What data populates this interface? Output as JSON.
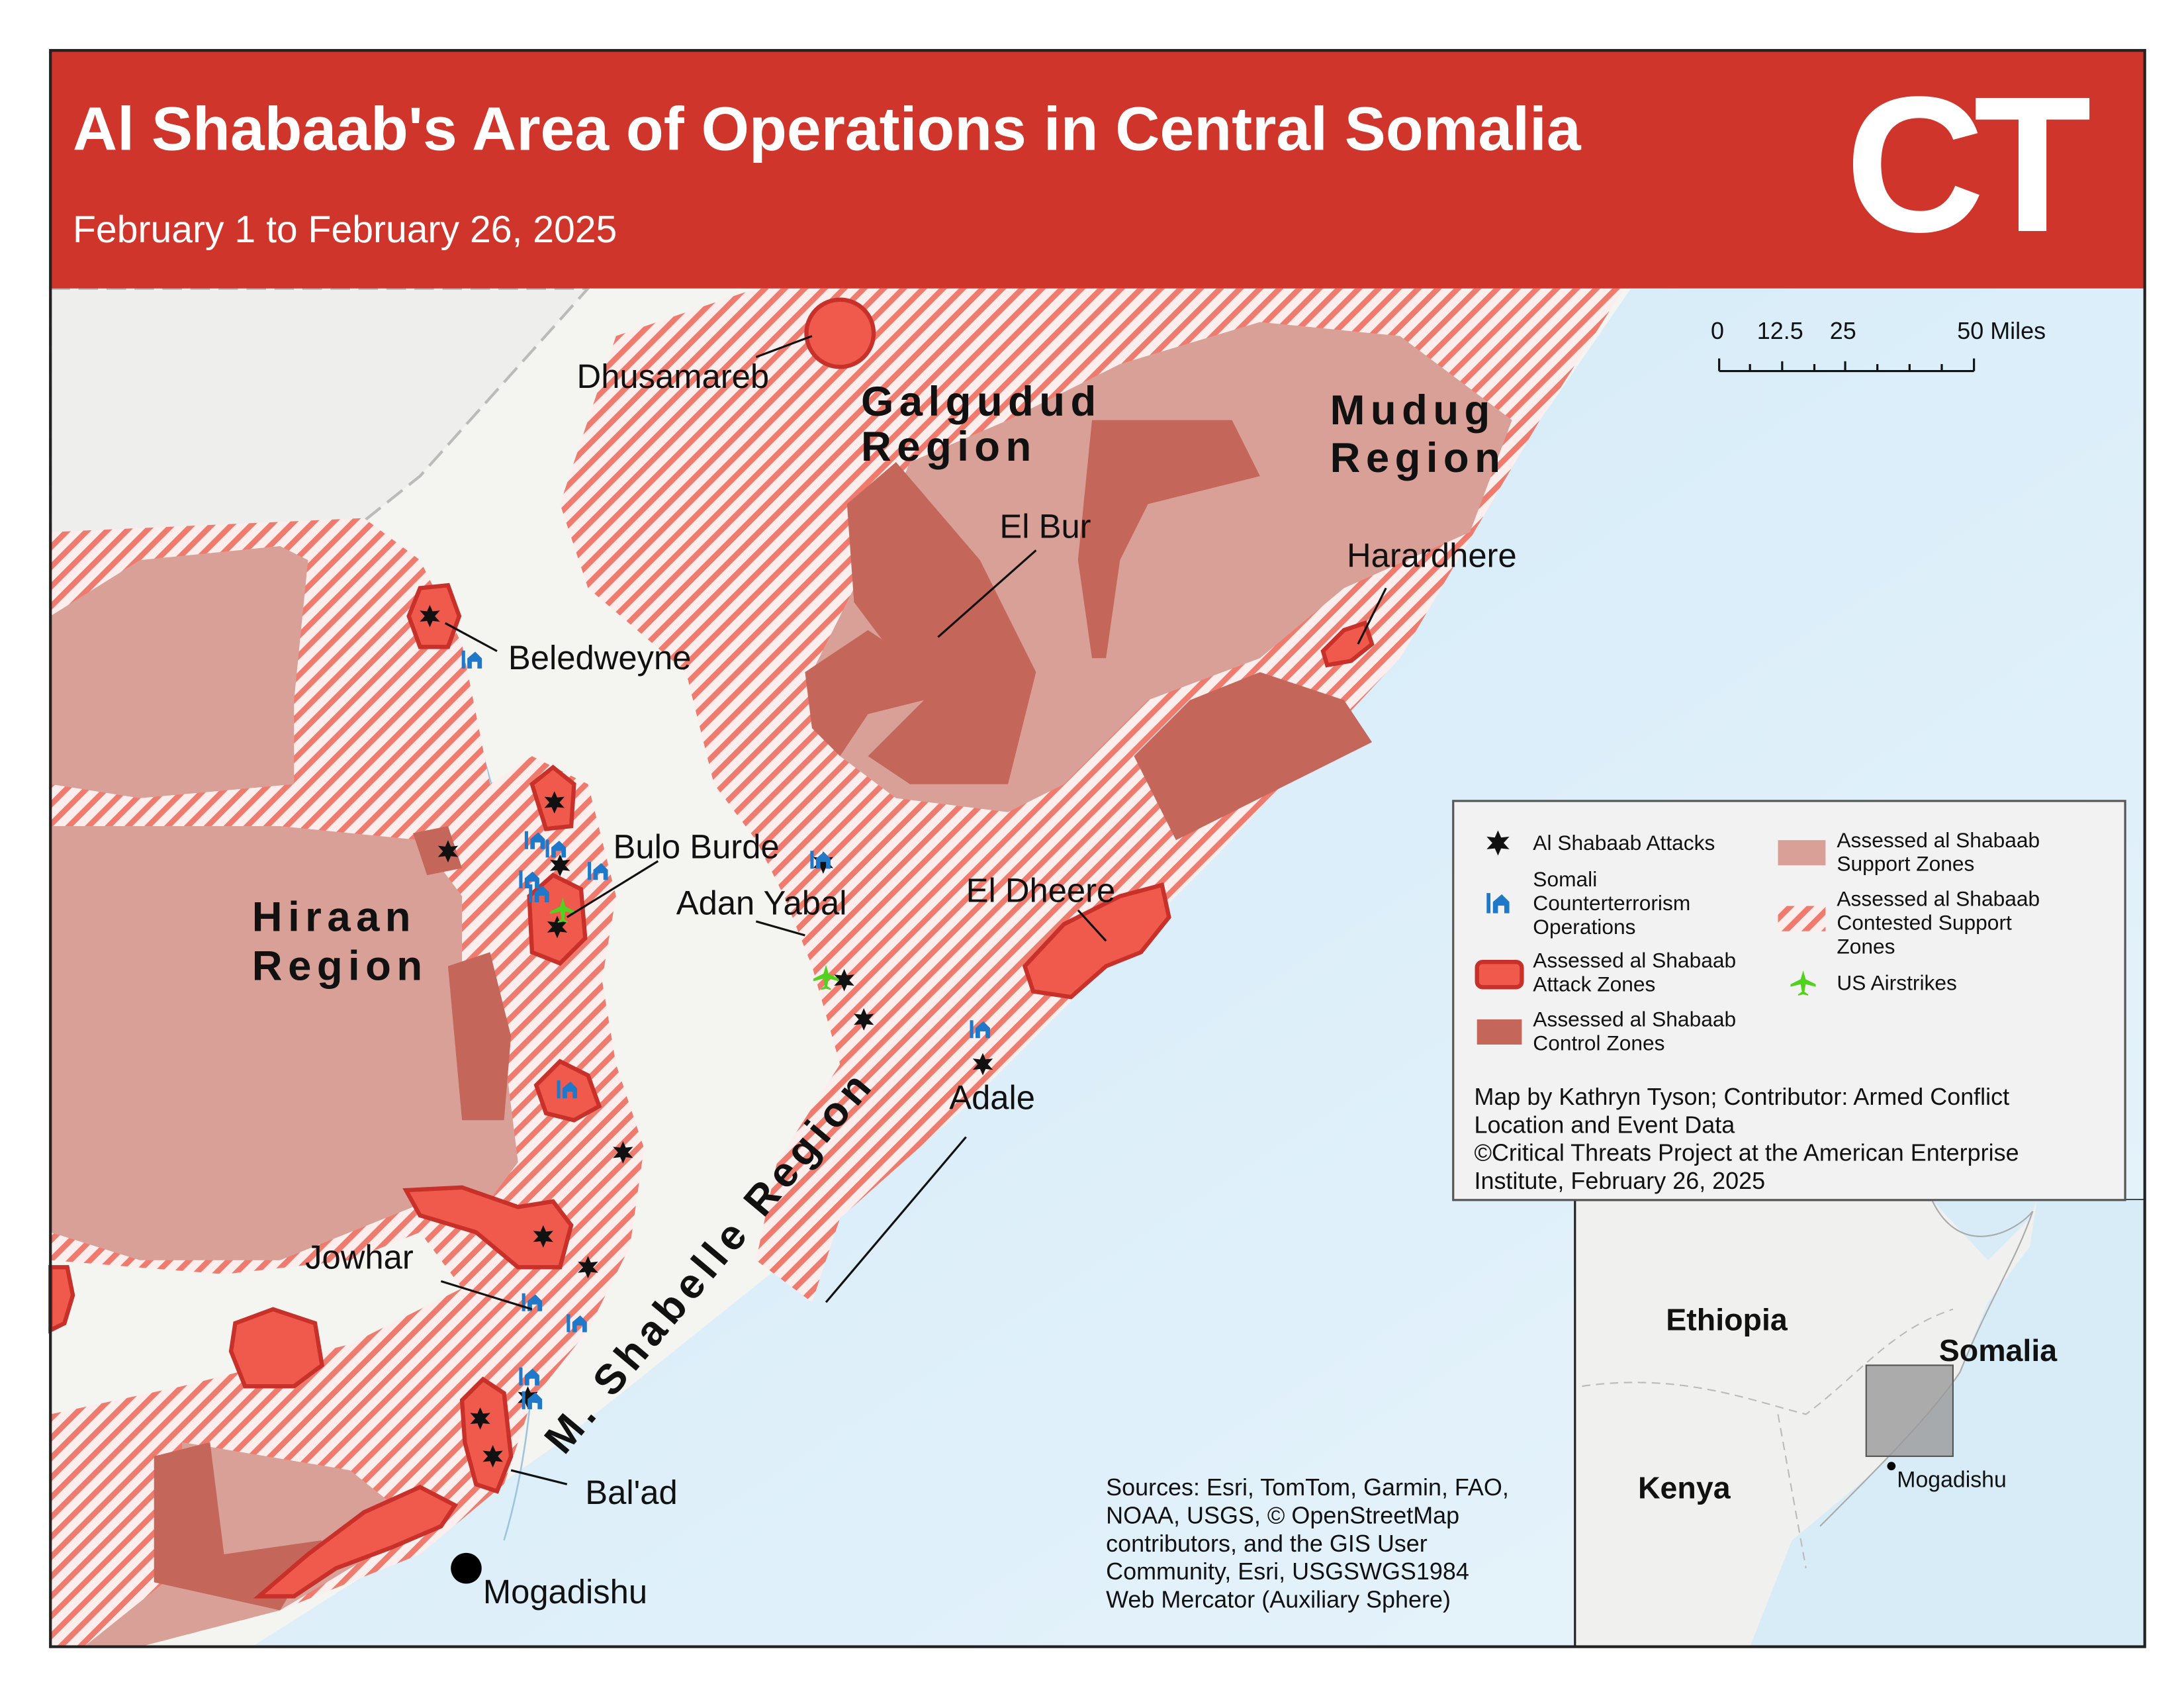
{
  "header": {
    "title": "Al Shabaab's Area of Operations in Central Somalia",
    "subtitle": "February 1 to February 26, 2025",
    "logo": "CT"
  },
  "scale_bar": {
    "labels": [
      "0",
      "12.5",
      "25",
      "50 Miles"
    ]
  },
  "regions": [
    [
      "Galgudud",
      "Region"
    ],
    [
      "Mudug",
      "Region"
    ],
    [
      "Hiraan",
      "Region"
    ],
    [
      "M. Shabelle Region"
    ]
  ],
  "places": [
    "Dhusamareb",
    "El Bur",
    "Harardhere",
    "Beledweyne",
    "Bulo Burde",
    "Adan Yabal",
    "El Dheere",
    "Adale",
    "Jowhar",
    "Bal'ad",
    "Mogadishu"
  ],
  "legend": {
    "items": [
      [
        "Al Shabaab Attacks"
      ],
      [
        "Somali",
        "Counterterrorism",
        "Operations"
      ],
      [
        "Assessed al Shabaab",
        "Attack Zones"
      ],
      [
        "Assessed al Shabaab",
        "Control Zones"
      ],
      [
        "Assessed al Shabaab",
        "Support Zones"
      ],
      [
        "Assessed al Shabaab",
        "Contested Support",
        "Zones"
      ],
      [
        "US Airstrikes"
      ]
    ],
    "credits": [
      "Map by Kathryn Tyson; Contributor: Armed Conflict",
      "Location and Event Data",
      "©Critical Threats Project at the American Enterprise",
      "Institute, February 26, 2025"
    ]
  },
  "sources": [
    "Sources: Esri, TomTom, Garmin, FAO,",
    "NOAA, USGS, © OpenStreetMap",
    "contributors, and the GIS User",
    "Community, Esri, USGSWGS1984",
    "Web Mercator (Auxiliary Sphere)"
  ],
  "inset": {
    "labels": [
      "Ethiopia",
      "Somalia",
      "Kenya",
      "Mogadishu"
    ]
  }
}
